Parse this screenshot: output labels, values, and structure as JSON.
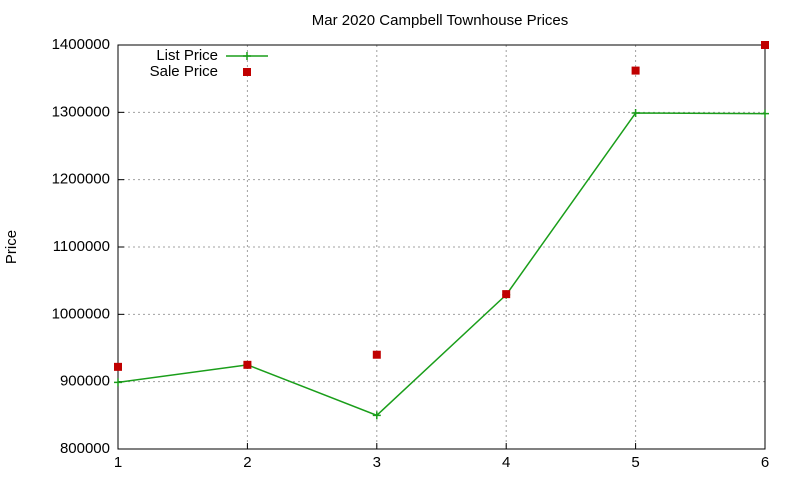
{
  "chart_data": {
    "type": "line",
    "title": "Mar 2020 Campbell Townhouse Prices",
    "y_label": "Price",
    "x": [
      1,
      2,
      3,
      4,
      5,
      6
    ],
    "series": [
      {
        "name": "List Price",
        "color": "#1a9e1a",
        "style": "linespoints",
        "values": [
          899000,
          925000,
          850000,
          1029000,
          1299000,
          1298000
        ]
      },
      {
        "name": "Sale Price",
        "color": "#c00000",
        "style": "points",
        "values": [
          922000,
          925000,
          940000,
          1030000,
          1362000,
          1400000
        ]
      }
    ],
    "xlim": [
      1,
      6
    ],
    "xticks": [
      1,
      2,
      3,
      4,
      5,
      6
    ],
    "ylim": [
      800000,
      1400000
    ],
    "yticks": [
      800000,
      900000,
      1000000,
      1100000,
      1200000,
      1300000,
      1400000
    ],
    "grid": true,
    "legend": "top left"
  }
}
